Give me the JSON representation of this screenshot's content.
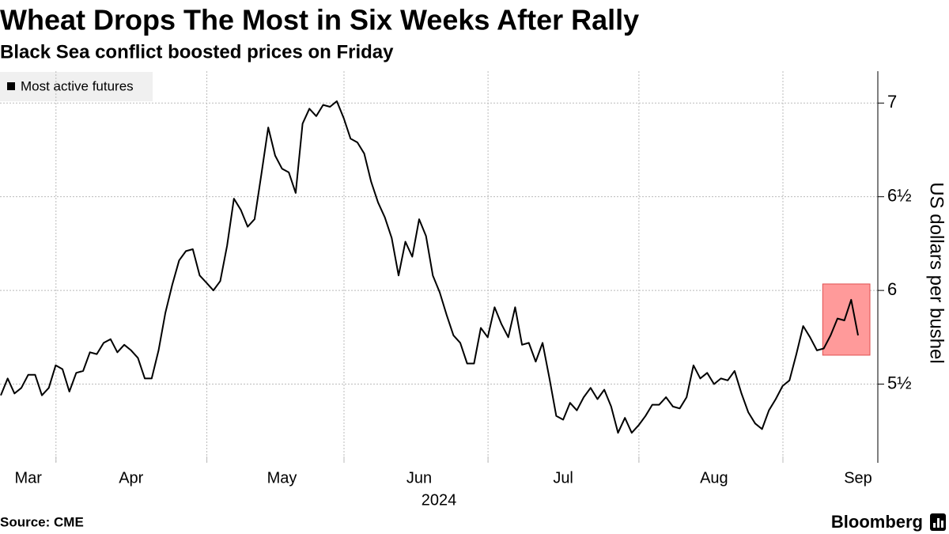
{
  "chart_data": {
    "type": "line",
    "title": "Wheat Drops The Most in Six Weeks After Rally",
    "subtitle": "Black Sea conflict boosted prices on Friday",
    "y_axis_label": "US dollars per bushel",
    "year_label": "2024",
    "source": "Source: CME",
    "brand": "Bloomberg",
    "ylim": [
      5.08,
      7.17
    ],
    "yticks": [
      {
        "value": 5.5,
        "label": "5½"
      },
      6,
      {
        "value": 6.5,
        "label": "6½"
      },
      7
    ],
    "grid": true,
    "categories": [
      null,
      null,
      null,
      null,
      "Mar",
      null,
      null,
      null,
      null,
      null,
      null,
      null,
      null,
      null,
      null,
      null,
      null,
      null,
      null,
      "Apr",
      null,
      null,
      null,
      null,
      null,
      null,
      null,
      null,
      null,
      null,
      null,
      null,
      null,
      null,
      null,
      null,
      null,
      null,
      null,
      null,
      null,
      "May",
      null,
      null,
      null,
      null,
      null,
      null,
      null,
      null,
      null,
      null,
      null,
      null,
      null,
      null,
      null,
      null,
      null,
      null,
      null,
      "Jun",
      null,
      null,
      null,
      null,
      null,
      null,
      null,
      null,
      null,
      null,
      null,
      null,
      null,
      null,
      null,
      null,
      null,
      null,
      null,
      null,
      "Jul",
      null,
      null,
      null,
      null,
      null,
      null,
      null,
      null,
      null,
      null,
      null,
      null,
      null,
      null,
      null,
      null,
      null,
      null,
      null,
      null,
      null,
      "Aug",
      null,
      null,
      null,
      null,
      null,
      null,
      null,
      null,
      null,
      null,
      null,
      null,
      null,
      null,
      null,
      null,
      null,
      null,
      null,
      null,
      "Sep"
    ],
    "series": [
      {
        "name": "Most active futures",
        "color": "#000000",
        "values": [
          5.44,
          5.53,
          5.45,
          5.48,
          5.55,
          5.55,
          5.44,
          5.48,
          5.6,
          5.58,
          5.46,
          5.56,
          5.57,
          5.67,
          5.66,
          5.72,
          5.74,
          5.67,
          5.71,
          5.68,
          5.64,
          5.53,
          5.53,
          5.68,
          5.88,
          6.03,
          6.16,
          6.21,
          6.22,
          6.08,
          6.04,
          6.0,
          6.05,
          6.24,
          6.49,
          6.43,
          6.34,
          6.38,
          6.62,
          6.87,
          6.72,
          6.65,
          6.63,
          6.52,
          6.89,
          6.97,
          6.93,
          6.99,
          6.98,
          7.01,
          6.92,
          6.81,
          6.79,
          6.73,
          6.58,
          6.47,
          6.39,
          6.28,
          6.08,
          6.26,
          6.18,
          6.38,
          6.29,
          6.08,
          5.99,
          5.87,
          5.76,
          5.72,
          5.61,
          5.61,
          5.8,
          5.75,
          5.91,
          5.82,
          5.75,
          5.91,
          5.71,
          5.72,
          5.62,
          5.72,
          5.53,
          5.33,
          5.31,
          5.4,
          5.36,
          5.43,
          5.48,
          5.42,
          5.47,
          5.38,
          5.24,
          5.32,
          5.24,
          5.28,
          5.33,
          5.39,
          5.39,
          5.43,
          5.38,
          5.37,
          5.43,
          5.6,
          5.53,
          5.56,
          5.5,
          5.53,
          5.52,
          5.57,
          5.45,
          5.35,
          5.29,
          5.26,
          5.36,
          5.42,
          5.49,
          5.52,
          5.66,
          5.81,
          5.75,
          5.68,
          5.69,
          5.76,
          5.85,
          5.84,
          5.95,
          5.76
        ]
      }
    ]
  }
}
